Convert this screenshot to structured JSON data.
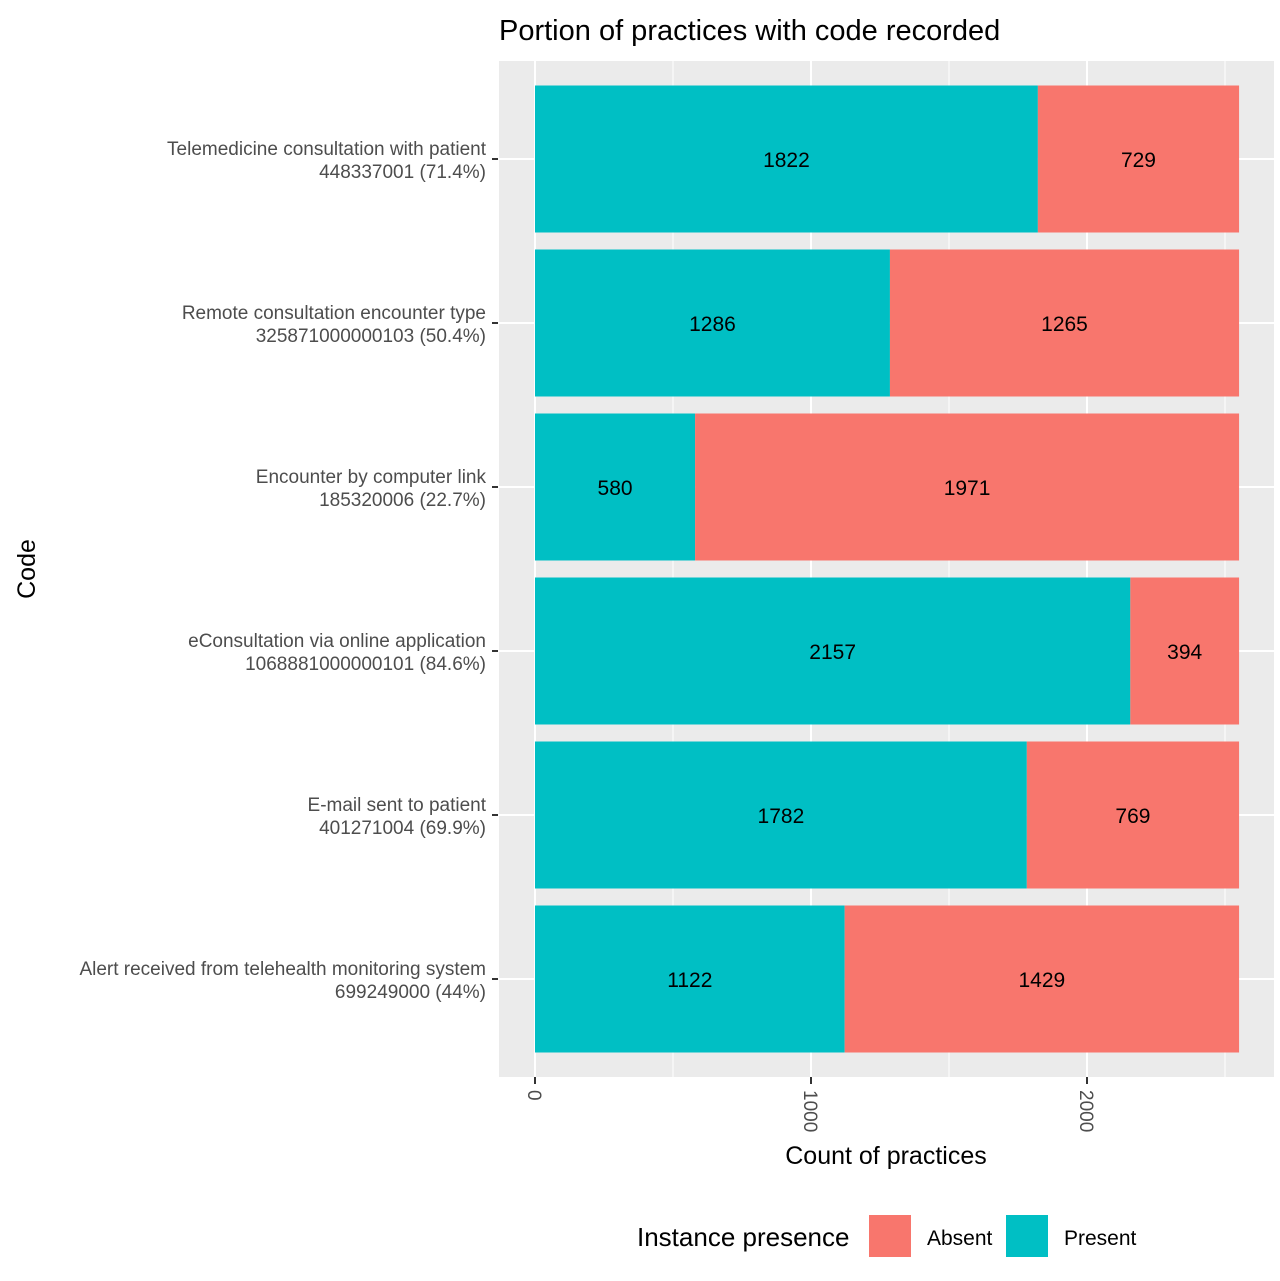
{
  "chart_data": {
    "type": "bar",
    "orientation": "horizontal",
    "stacked": true,
    "title": "Portion of practices with code recorded",
    "xlabel": "Count of practices",
    "ylabel": "Code",
    "xlim": [
      0,
      2551
    ],
    "xticks": [
      {
        "value": 0,
        "label": "0"
      },
      {
        "value": 1000,
        "label": "1000"
      },
      {
        "value": 2000,
        "label": "2000"
      }
    ],
    "grid": true,
    "categories": [
      {
        "name": "Telemedicine consultation with patient",
        "code": "448337001 (71.4%)"
      },
      {
        "name": "Remote consultation encounter type",
        "code": "325871000000103 (50.4%)"
      },
      {
        "name": "Encounter by computer link",
        "code": "185320006 (22.7%)"
      },
      {
        "name": "eConsultation via online application",
        "code": "1068881000000101 (84.6%)"
      },
      {
        "name": "E-mail sent to patient",
        "code": "401271004 (69.9%)"
      },
      {
        "name": "Alert received from telehealth monitoring system",
        "code": "699249000 (44%)"
      }
    ],
    "series": [
      {
        "name": "Present",
        "color": "#00BFC4",
        "values": [
          1822,
          1286,
          580,
          2157,
          1782,
          1122
        ]
      },
      {
        "name": "Absent",
        "color": "#F8766D",
        "values": [
          729,
          1265,
          1971,
          394,
          769,
          1429
        ]
      }
    ],
    "legend": {
      "title": "Instance presence",
      "position": "bottom",
      "items": [
        {
          "label": "Absent",
          "color": "#F8766D"
        },
        {
          "label": "Present",
          "color": "#00BFC4"
        }
      ]
    }
  }
}
